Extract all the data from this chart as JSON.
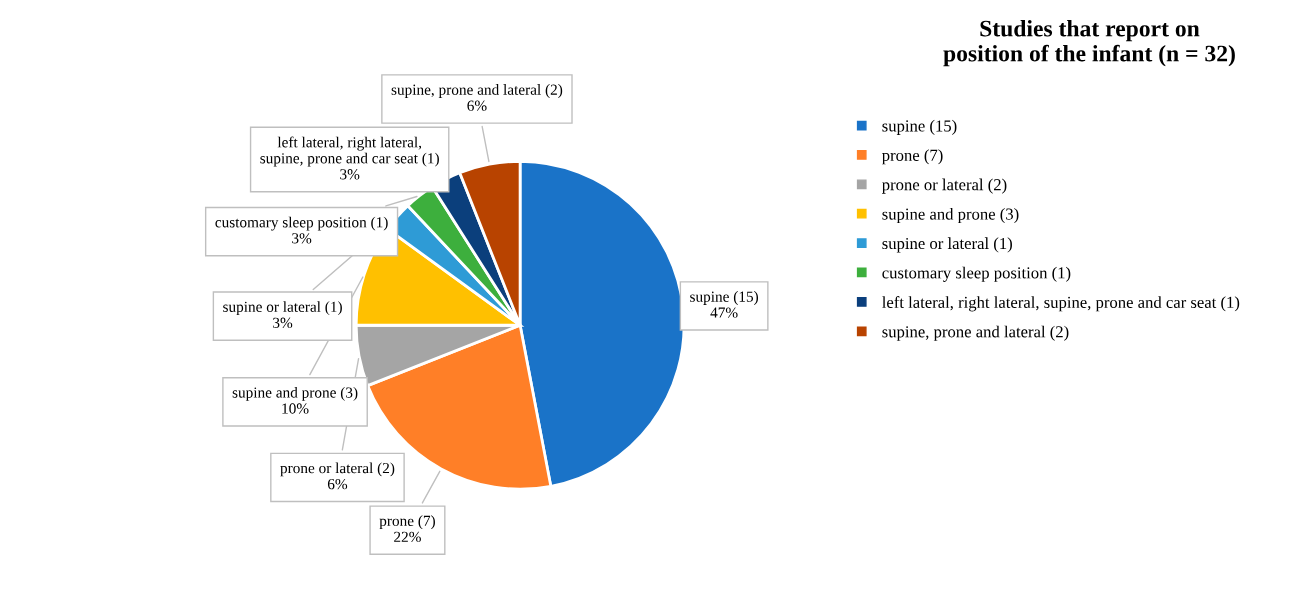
{
  "chart_data": {
    "type": "pie",
    "title": "Studies that report on\nposition of the infant (n = 32)",
    "categories": [
      "supine (15)",
      "prone (7)",
      "prone or lateral (2)",
      "supine and prone (3)",
      "supine or lateral (1)",
      "customary sleep position (1)",
      "left lateral, right lateral, supine, prone and car seat (1)",
      "supine, prone and lateral (2)"
    ],
    "values": [
      47,
      22,
      6,
      10,
      3,
      3,
      3,
      6
    ],
    "value_labels": [
      "47%",
      "22%",
      "6%",
      "10%",
      "3%",
      "3%",
      "3%",
      "6%"
    ],
    "colors": [
      "#1a73c8",
      "#ff7f27",
      "#a5a5a5",
      "#ffc000",
      "#2e9bd6",
      "#3daf3d",
      "#0b3f7c",
      "#b84300"
    ],
    "legend": "right"
  }
}
